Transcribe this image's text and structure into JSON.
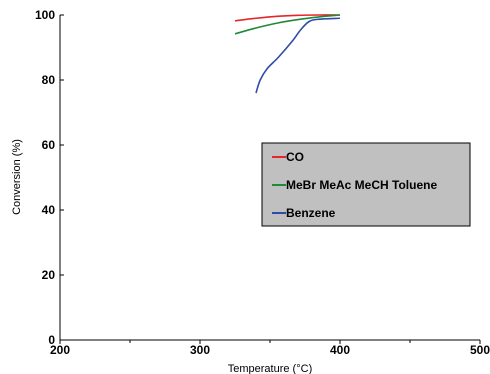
{
  "chart_data": {
    "type": "line",
    "title": "",
    "xlabel": "Temperature (°C)",
    "ylabel": "Conversion (%)",
    "xlim": [
      200,
      500
    ],
    "ylim": [
      0,
      100
    ],
    "x_ticks": [
      "200",
      "300",
      "400",
      "500"
    ],
    "y_ticks": [
      "0",
      "20",
      "40",
      "60",
      "80",
      "100"
    ],
    "grid": false,
    "legend_position": "right",
    "series": [
      {
        "name": "CO",
        "color": "#e8252a",
        "x": [
          325,
          340,
          355,
          370,
          385,
          400
        ],
        "y": [
          98.2,
          99.0,
          99.6,
          99.9,
          100,
          100
        ]
      },
      {
        "name": "MeBr MeAc MeCH Toluene",
        "color": "#1f8a3a",
        "x": [
          325,
          340,
          355,
          370,
          385,
          400
        ],
        "y": [
          94.2,
          96.0,
          97.5,
          98.6,
          99.4,
          100
        ]
      },
      {
        "name": "Benzene",
        "color": "#2f4da8",
        "x": [
          340,
          343,
          348,
          356,
          366,
          372,
          378,
          385,
          400
        ],
        "y": [
          76.0,
          80.0,
          83.5,
          87.0,
          92.0,
          95.5,
          98.0,
          98.7,
          99.0
        ]
      }
    ]
  }
}
